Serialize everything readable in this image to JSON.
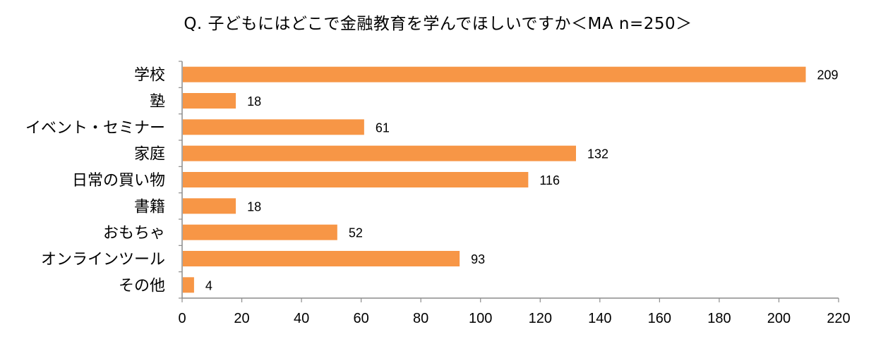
{
  "chart_data": {
    "type": "bar",
    "orientation": "horizontal",
    "title": "Q. 子どもにはどこで金融教育を学んでほしいですか＜MA n=250＞",
    "categories": [
      "学校",
      "塾",
      "イベント・セミナー",
      "家庭",
      "日常の買い物",
      "書籍",
      "おもちゃ",
      "オンラインツール",
      "その他"
    ],
    "values": [
      209,
      18,
      61,
      132,
      116,
      18,
      52,
      93,
      4
    ],
    "xlim": [
      0,
      220
    ],
    "xticks": [
      0,
      20,
      40,
      60,
      80,
      100,
      120,
      140,
      160,
      180,
      200,
      220
    ],
    "grid": false,
    "legend": "none",
    "bar_color": "#F79646"
  }
}
